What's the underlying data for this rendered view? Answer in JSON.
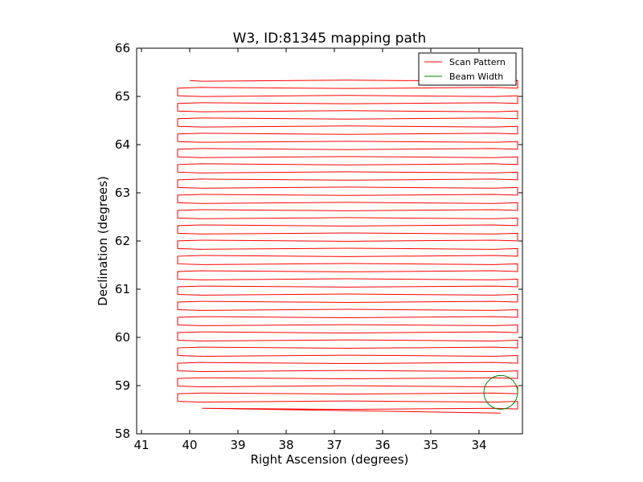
{
  "chart_data": {
    "type": "line",
    "title": "W3, ID:81345 mapping path",
    "xlabel": "Right Ascension (degrees)",
    "ylabel": "Declination (degrees)",
    "xlim": [
      41.1,
      33.1
    ],
    "ylim": [
      58,
      66
    ],
    "xticks": [
      41,
      40,
      39,
      38,
      37,
      36,
      35,
      34
    ],
    "yticks": [
      58,
      59,
      60,
      61,
      62,
      63,
      64,
      65,
      66
    ],
    "grid": false,
    "legend_position": "top-right",
    "series": [
      {
        "name": "Scan Pattern",
        "color": "#ff0000",
        "dec_start": 65.33,
        "dec_step": -0.1585,
        "ra_east": 33.2,
        "ra_west": 40.25,
        "rows": 44,
        "dec_end": 58.43
      },
      {
        "name": "Beam Width",
        "color": "#008000",
        "circle": {
          "ra": 33.55,
          "dec": 58.86,
          "radius_deg": 0.35
        }
      }
    ]
  }
}
